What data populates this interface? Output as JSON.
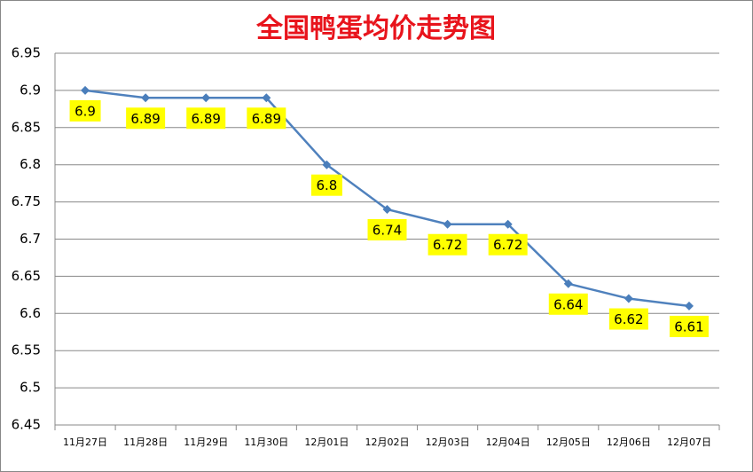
{
  "chart_data": {
    "type": "line",
    "title": "全国鸭蛋均价走势图",
    "categories": [
      "11月27日",
      "11月28日",
      "11月29日",
      "11月30日",
      "12月01日",
      "12月02日",
      "12月03日",
      "12月04日",
      "12月05日",
      "12月06日",
      "12月07日"
    ],
    "values": [
      6.9,
      6.89,
      6.89,
      6.89,
      6.8,
      6.74,
      6.72,
      6.72,
      6.64,
      6.62,
      6.61
    ],
    "color": "#4f81bd",
    "ylim": [
      6.45,
      6.95
    ],
    "yticks": [
      6.45,
      6.5,
      6.55,
      6.6,
      6.65,
      6.7,
      6.75,
      6.8,
      6.85,
      6.9,
      6.95
    ],
    "grid": true
  }
}
